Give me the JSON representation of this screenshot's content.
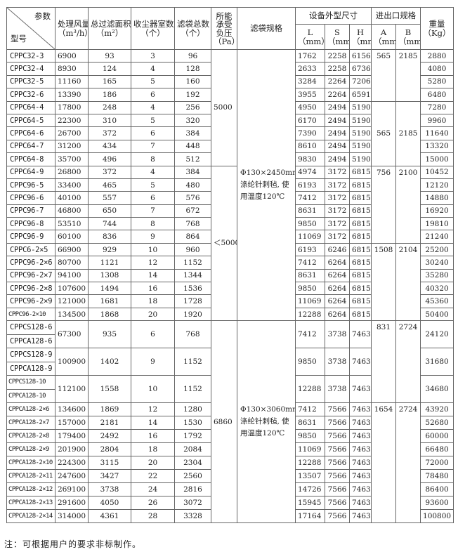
{
  "header": {
    "corner_param": "参数",
    "corner_model": "型号",
    "air": "处理风量",
    "air_unit": "（m³/h）",
    "area": "总过滤面积",
    "area_unit": "（m²）",
    "rooms": "收尘器室数",
    "rooms_unit": "（个）",
    "bags": "滤袋总数",
    "bags_unit": "（个）",
    "pressure": "所能承受负压",
    "pressure_unit": "（Pa）",
    "spec": "滤袋规格",
    "dims": "设备外型尺寸",
    "ports": "进出口规格",
    "weight": "重量",
    "weight_unit": "（Kg）",
    "L": "L",
    "S": "S",
    "H": "H",
    "A": "A",
    "B": "B",
    "mm": "（mm）"
  },
  "rows": [
    {
      "model": "CPPC32-3",
      "air": "6900",
      "area": "93",
      "rooms": "3",
      "bags": "96",
      "pressure": "5000",
      "spec": "Φ130×2450mm 涤纶针刺毡, 使用温度120℃",
      "L": "1762",
      "S": "2258",
      "H": "6156",
      "A": "565",
      "B": "2185",
      "weight": "2880"
    },
    {
      "model": "CPPC32-4",
      "air": "8930",
      "area": "124",
      "rooms": "4",
      "bags": "128",
      "L": "2633",
      "S": "2258",
      "H": "6736",
      "weight": "4080"
    },
    {
      "model": "CPPC32-5",
      "air": "11160",
      "area": "165",
      "rooms": "5",
      "bags": "160",
      "L": "3284",
      "S": "2264",
      "H": "7206",
      "weight": "5280"
    },
    {
      "model": "CPPC32-6",
      "air": "13390",
      "area": "186",
      "rooms": "6",
      "bags": "192",
      "L": "3955",
      "S": "2264",
      "H": "6591",
      "weight": "6480"
    },
    {
      "model": "CPPC64-4",
      "air": "17800",
      "area": "248",
      "rooms": "4",
      "bags": "256",
      "L": "4950",
      "S": "2494",
      "H": "5190",
      "A": "565",
      "B": "2185",
      "weight": "7280"
    },
    {
      "model": "CPPC64-5",
      "air": "22300",
      "area": "310",
      "rooms": "5",
      "bags": "320",
      "L": "6170",
      "S": "2494",
      "H": "5190",
      "weight": "9960"
    },
    {
      "model": "CPPC64-6",
      "air": "26700",
      "area": "372",
      "rooms": "6",
      "bags": "384",
      "L": "7390",
      "S": "2494",
      "H": "5190",
      "weight": "11640"
    },
    {
      "model": "CPPC64-7",
      "air": "31200",
      "area": "434",
      "rooms": "7",
      "bags": "448",
      "L": "8610",
      "S": "2494",
      "H": "5190",
      "weight": "13320"
    },
    {
      "model": "CPPC64-8",
      "air": "35700",
      "area": "496",
      "rooms": "8",
      "bags": "512",
      "L": "9830",
      "S": "2494",
      "H": "5190",
      "weight": "15000"
    },
    {
      "model": "CPPC64-9",
      "air": "26800",
      "area": "372",
      "rooms": "4",
      "bags": "384",
      "pressure": "＜5000",
      "L": "4974",
      "S": "3172",
      "H": "6815",
      "A": "756",
      "B": "2100",
      "weight": "10452"
    },
    {
      "model": "CPPC96-5",
      "air": "33400",
      "area": "465",
      "rooms": "5",
      "bags": "480",
      "L": "6193",
      "S": "3172",
      "H": "6815",
      "weight": "12120"
    },
    {
      "model": "CPPC96-6",
      "air": "40100",
      "area": "557",
      "rooms": "6",
      "bags": "576",
      "L": "7412",
      "S": "3172",
      "H": "6815",
      "weight": "14880"
    },
    {
      "model": "CPPC96-7",
      "air": "46800",
      "area": "650",
      "rooms": "7",
      "bags": "672",
      "L": "8631",
      "S": "3172",
      "H": "6815",
      "weight": "16920"
    },
    {
      "model": "CPPC96-8",
      "air": "53510",
      "area": "744",
      "rooms": "8",
      "bags": "768",
      "L": "9850",
      "S": "3172",
      "H": "6815",
      "weight": "19810"
    },
    {
      "model": "CPPC96-9",
      "air": "60100",
      "area": "836",
      "rooms": "9",
      "bags": "864",
      "L": "11069",
      "S": "3172",
      "H": "6815",
      "weight": "21240"
    },
    {
      "model": "CPPC6-2×5",
      "air": "66900",
      "area": "929",
      "rooms": "10",
      "bags": "960",
      "L": "6193",
      "S": "6246",
      "H": "6815",
      "A": "1508",
      "B": "2104",
      "weight": "25200"
    },
    {
      "model": "CPPC96-2×6",
      "air": "80700",
      "area": "1121",
      "rooms": "12",
      "bags": "1152",
      "L": "7412",
      "S": "6264",
      "H": "6815",
      "weight": "30240"
    },
    {
      "model": "CPPC96-2×7",
      "air": "94100",
      "area": "1308",
      "rooms": "14",
      "bags": "1344",
      "L": "8631",
      "S": "6264",
      "H": "6815",
      "weight": "35280"
    },
    {
      "model": "CPPC96-2×8",
      "air": "107600",
      "area": "1494",
      "rooms": "16",
      "bags": "1536",
      "L": "9850",
      "S": "6264",
      "H": "6815",
      "weight": "40320"
    },
    {
      "model": "CPPC96-2×9",
      "air": "121000",
      "area": "1681",
      "rooms": "18",
      "bags": "1728",
      "L": "11069",
      "S": "6264",
      "H": "6815",
      "weight": "45360"
    },
    {
      "model": "CPPC96-2×10",
      "air": "134500",
      "area": "1868",
      "rooms": "20",
      "bags": "1920",
      "L": "12288",
      "S": "6264",
      "H": "6815",
      "weight": "50400"
    },
    {
      "models": [
        "CPPCS128-6",
        "CPPCA128-6"
      ],
      "air": "67300",
      "area": "935",
      "rooms": "6",
      "bags": "768",
      "pressure": "6860",
      "spec": "Φ130×3060mm 涤纶针刺毡, 使用温度120℃",
      "L": "7412",
      "S": "3738",
      "H": "7463",
      "A": "831",
      "B": "2724",
      "weight": "24120"
    },
    {
      "models": [
        "CPPCS128-9",
        "CPPCA128-9"
      ],
      "air": "100900",
      "area": "1402",
      "rooms": "9",
      "bags": "1152",
      "L": "9850",
      "S": "3738",
      "H": "7463",
      "weight": "31680"
    },
    {
      "models": [
        "CPPCS128-10",
        "CPPCA128-10"
      ],
      "air": "112100",
      "area": "1558",
      "rooms": "10",
      "bags": "1152",
      "L": "12288",
      "S": "3738",
      "H": "7463",
      "weight": "34680"
    },
    {
      "model": "CPPCA128-2×6",
      "air": "134600",
      "area": "1869",
      "rooms": "12",
      "bags": "1280",
      "L": "7412",
      "S": "7566",
      "H": "7463",
      "A": "1654",
      "B": "2724",
      "weight": "43920"
    },
    {
      "model": "CPPCA128-2×7",
      "air": "157000",
      "area": "2181",
      "rooms": "14",
      "bags": "1530",
      "L": "8631",
      "S": "7566",
      "H": "7463",
      "weight": "52680"
    },
    {
      "model": "CPPCA128-2×8",
      "air": "179400",
      "area": "2492",
      "rooms": "16",
      "bags": "1792",
      "L": "9850",
      "S": "7566",
      "H": "7463",
      "weight": "60000"
    },
    {
      "model": "CPPCA128-2×9",
      "air": "201900",
      "area": "2804",
      "rooms": "18",
      "bags": "2084",
      "L": "11069",
      "S": "7566",
      "H": "7463",
      "weight": "66480"
    },
    {
      "model": "CPPCA128-2×10",
      "air": "224300",
      "area": "3115",
      "rooms": "20",
      "bags": "2304",
      "L": "12288",
      "S": "7566",
      "H": "7463",
      "weight": "72000"
    },
    {
      "model": "CPPCA128-2×11",
      "air": "247600",
      "area": "3427",
      "rooms": "22",
      "bags": "2560",
      "L": "13507",
      "S": "7566",
      "H": "7463",
      "weight": "78480"
    },
    {
      "model": "CPPCA128-2×12",
      "air": "269100",
      "area": "3738",
      "rooms": "24",
      "bags": "2816",
      "L": "14726",
      "S": "7566",
      "H": "7463",
      "weight": "86400"
    },
    {
      "model": "CPPCA128-2×13",
      "air": "291600",
      "area": "4050",
      "rooms": "26",
      "bags": "3072",
      "L": "15945",
      "S": "7566",
      "H": "7463",
      "weight": "93600"
    },
    {
      "model": "CPPCA128-2×14",
      "air": "314000",
      "area": "4361",
      "rooms": "28",
      "bags": "3328",
      "L": "17164",
      "S": "7566",
      "H": "7463",
      "weight": "100800"
    }
  ],
  "note": "注：可根据用户的要求非标制作。"
}
